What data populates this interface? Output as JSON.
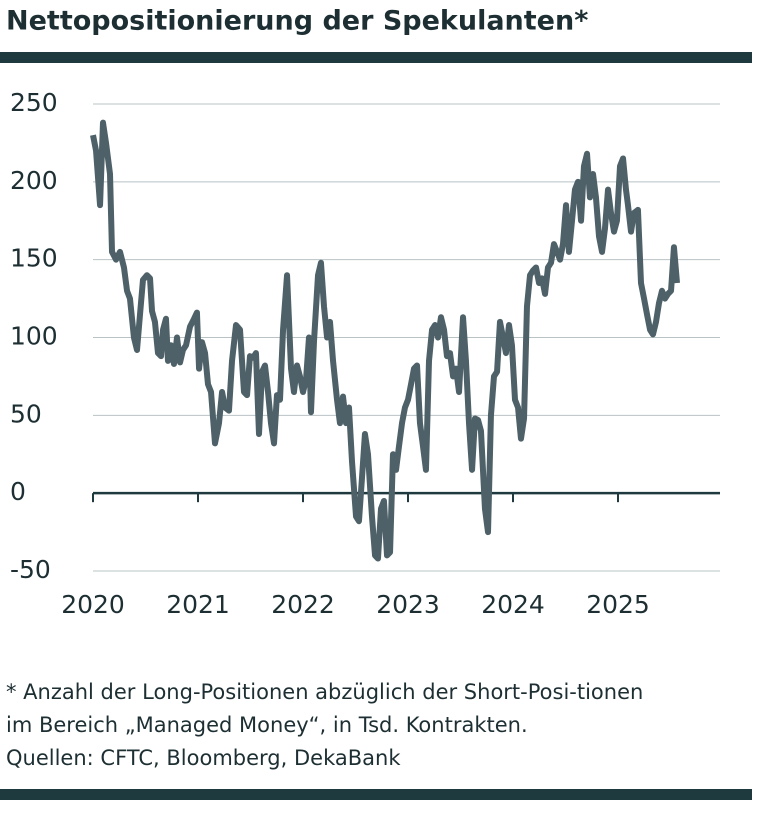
{
  "chart_data": {
    "type": "line",
    "title": "Nettopositionierung der Spekulanten*",
    "footnote": [
      "* Anzahl der Long-Positionen abzüglich der Short-Posi-tionen",
      "im Bereich „Managed Money“, in Tsd. Kontrakten.",
      "Quellen: CFTC, Bloomberg, DekaBank"
    ],
    "xlim": [
      2020,
      2026
    ],
    "xticks": [
      2020,
      2021,
      2022,
      2023,
      2024,
      2025
    ],
    "ylim": [
      -50,
      250
    ],
    "yticks": [
      -50,
      0,
      50,
      100,
      150,
      200,
      250
    ],
    "grid": true,
    "x": [
      2020,
      2020.029,
      2020.067,
      2020.095,
      2020.124,
      2020.162,
      2020.181,
      2020.219,
      2020.257,
      2020.295,
      2020.324,
      2020.352,
      2020.39,
      2020.419,
      2020.448,
      2020.476,
      2020.514,
      2020.543,
      2020.562,
      2020.59,
      2020.619,
      2020.648,
      2020.667,
      2020.695,
      2020.714,
      2020.743,
      2020.771,
      2020.8,
      2020.829,
      2020.857,
      2020.886,
      2020.924,
      2020.962,
      2020.99,
      2021.01,
      2021.038,
      2021.067,
      2021.095,
      2021.124,
      2021.162,
      2021.2,
      2021.229,
      2021.257,
      2021.295,
      2021.324,
      2021.362,
      2021.4,
      2021.438,
      2021.467,
      2021.495,
      2021.524,
      2021.552,
      2021.581,
      2021.61,
      2021.638,
      2021.667,
      2021.695,
      2021.724,
      2021.752,
      2021.781,
      2021.81,
      2021.848,
      2021.886,
      2021.914,
      2021.943,
      2021.971,
      2022,
      2022.029,
      2022.057,
      2022.076,
      2022.105,
      2022.143,
      2022.171,
      2022.2,
      2022.229,
      2022.257,
      2022.286,
      2022.324,
      2022.352,
      2022.381,
      2022.41,
      2022.438,
      2022.467,
      2022.505,
      2022.533,
      2022.562,
      2022.59,
      2022.619,
      2022.657,
      2022.686,
      2022.714,
      2022.743,
      2022.771,
      2022.8,
      2022.829,
      2022.857,
      2022.886,
      2022.914,
      2022.943,
      2022.971,
      2023,
      2023.029,
      2023.057,
      2023.086,
      2023.114,
      2023.143,
      2023.171,
      2023.2,
      2023.229,
      2023.257,
      2023.286,
      2023.314,
      2023.343,
      2023.371,
      2023.4,
      2023.429,
      2023.457,
      2023.486,
      2023.524,
      2023.552,
      2023.581,
      2023.61,
      2023.638,
      2023.667,
      2023.695,
      2023.733,
      2023.762,
      2023.79,
      2023.819,
      2023.848,
      2023.876,
      2023.905,
      2023.933,
      2023.962,
      2023.99,
      2024.019,
      2024.048,
      2024.076,
      2024.105,
      2024.133,
      2024.162,
      2024.19,
      2024.219,
      2024.248,
      2024.276,
      2024.305,
      2024.333,
      2024.362,
      2024.39,
      2024.419,
      2024.448,
      2024.476,
      2024.505,
      2024.533,
      2024.562,
      2024.59,
      2024.619,
      2024.648,
      2024.676,
      2024.705,
      2024.733,
      2024.762,
      2024.79,
      2024.819,
      2024.848,
      2024.876,
      2024.905,
      2024.933,
      2024.962,
      2024.99,
      2025.019,
      2025.048,
      2025.076,
      2025.095,
      2025.124,
      2025.152,
      2025.19,
      2025.219,
      2025.248,
      2025.276,
      2025.305,
      2025.333,
      2025.362,
      2025.39,
      2025.419,
      2025.448,
      2025.476,
      2025.505,
      2025.533,
      2025.562
    ],
    "series": [
      {
        "color": "#4e6168",
        "values": [
          230,
          220,
          185,
          238,
          225,
          205,
          155,
          150,
          155,
          145,
          130,
          125,
          100,
          92,
          115,
          137,
          140,
          138,
          117,
          110,
          90,
          88,
          105,
          112,
          85,
          95,
          83,
          100,
          84,
          92,
          95,
          107,
          112,
          116,
          80,
          97,
          90,
          70,
          65,
          32,
          45,
          65,
          55,
          53,
          85,
          108,
          105,
          65,
          63,
          88,
          87,
          90,
          38,
          78,
          82,
          65,
          45,
          32,
          63,
          60,
          105,
          140,
          80,
          65,
          82,
          75,
          65,
          73,
          100,
          52,
          98,
          140,
          148,
          120,
          100,
          110,
          85,
          60,
          45,
          62,
          45,
          55,
          20,
          -15,
          -18,
          10,
          38,
          25,
          -15,
          -40,
          -42,
          -10,
          -5,
          -40,
          -38,
          25,
          15,
          30,
          45,
          55,
          60,
          70,
          80,
          82,
          45,
          30,
          15,
          85,
          105,
          108,
          100,
          113,
          105,
          88,
          90,
          75,
          80,
          65,
          113,
          85,
          45,
          15,
          48,
          47,
          40,
          -10,
          -25,
          50,
          75,
          78,
          110,
          100,
          90,
          108,
          95,
          60,
          55,
          35,
          48,
          120,
          140,
          143,
          145,
          135,
          138,
          128,
          145,
          148,
          160,
          155,
          150,
          160,
          185,
          155,
          175,
          195,
          200,
          175,
          210,
          218,
          190,
          205,
          190,
          165,
          155,
          170,
          195,
          180,
          168,
          175,
          210,
          215,
          195,
          185,
          168,
          180,
          182,
          135,
          125,
          115,
          105,
          102,
          110,
          122,
          130,
          125,
          128,
          130,
          158,
          135
        ]
      }
    ]
  }
}
